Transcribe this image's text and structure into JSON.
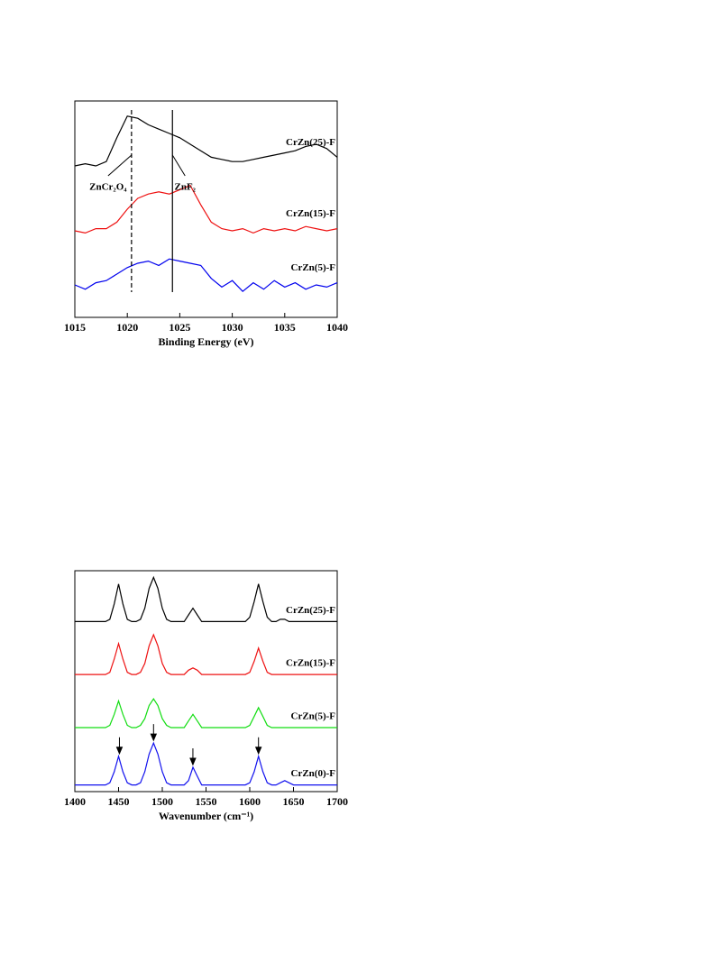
{
  "chart_data": [
    {
      "type": "line",
      "xlabel": "Binding Energy (eV)",
      "xlim": [
        1015,
        1040
      ],
      "xticks": [
        1015,
        1020,
        1025,
        1030,
        1035,
        1040
      ],
      "ylim": [
        0,
        100
      ],
      "x": [
        1015,
        1016,
        1017,
        1018,
        1019,
        1020,
        1021,
        1022,
        1023,
        1024,
        1025,
        1026,
        1027,
        1028,
        1029,
        1030,
        1031,
        1032,
        1033,
        1034,
        1035,
        1036,
        1037,
        1038,
        1039,
        1040
      ],
      "series": [
        {
          "name": "CrZn(25)-F",
          "color": "#000000",
          "values": [
            70,
            71,
            70,
            72,
            83,
            93,
            92,
            89,
            87,
            85,
            83,
            80,
            77,
            74,
            73,
            72,
            72,
            73,
            74,
            75,
            76,
            77,
            79,
            80,
            78,
            74
          ]
        },
        {
          "name": "CrZn(15)-F",
          "color": "#ee1111",
          "values": [
            40,
            39,
            41,
            41,
            44,
            50,
            55,
            57,
            58,
            57,
            59,
            61,
            52,
            44,
            41,
            40,
            41,
            39,
            41,
            40,
            41,
            40,
            42,
            41,
            40,
            41
          ]
        },
        {
          "name": "CrZn(5)-F",
          "color": "#0000ee",
          "values": [
            15,
            13,
            16,
            17,
            20,
            23,
            25,
            26,
            24,
            27,
            26,
            25,
            24,
            18,
            14,
            17,
            12,
            16,
            13,
            17,
            14,
            16,
            13,
            15,
            14,
            16
          ]
        }
      ],
      "vlines": [
        {
          "x": 1020.4,
          "dashed": true,
          "label": "ZnCr₂O₄"
        },
        {
          "x": 1024.3,
          "dashed": false,
          "label": "ZnF₂"
        }
      ]
    },
    {
      "type": "line",
      "xlabel": "Wavenumber (cm⁻¹)",
      "xlim": [
        1400,
        1700
      ],
      "xticks": [
        1400,
        1450,
        1500,
        1550,
        1600,
        1650,
        1700
      ],
      "ylim": [
        0,
        100
      ],
      "x": [
        1400,
        1405,
        1410,
        1415,
        1420,
        1425,
        1430,
        1435,
        1440,
        1445,
        1450,
        1455,
        1460,
        1465,
        1470,
        1475,
        1480,
        1485,
        1490,
        1495,
        1500,
        1505,
        1510,
        1515,
        1520,
        1525,
        1530,
        1535,
        1540,
        1545,
        1550,
        1555,
        1560,
        1565,
        1570,
        1575,
        1580,
        1585,
        1590,
        1595,
        1600,
        1605,
        1610,
        1615,
        1620,
        1625,
        1630,
        1635,
        1640,
        1645,
        1650,
        1655,
        1660,
        1665,
        1670,
        1675,
        1680,
        1685,
        1690,
        1695,
        1700
      ],
      "series": [
        {
          "name": "CrZn(25)-F",
          "color": "#000000",
          "values": [
            77,
            77,
            77,
            77,
            77,
            77,
            77,
            77,
            78,
            85,
            94,
            85,
            78,
            77,
            77,
            78,
            83,
            92,
            97,
            92,
            83,
            78,
            77,
            77,
            77,
            77,
            80,
            83,
            80,
            77,
            77,
            77,
            77,
            77,
            77,
            77,
            77,
            77,
            77,
            77,
            79,
            86,
            94,
            86,
            79,
            77,
            77,
            78,
            78,
            77,
            77,
            77,
            77,
            77,
            77,
            77,
            77,
            77,
            77,
            77,
            77
          ]
        },
        {
          "name": "CrZn(15)-F",
          "color": "#ee1111",
          "values": [
            53,
            53,
            53,
            53,
            53,
            53,
            53,
            53,
            54,
            60,
            67,
            60,
            54,
            53,
            53,
            54,
            58,
            66,
            71,
            66,
            58,
            54,
            53,
            53,
            53,
            53,
            55,
            56,
            55,
            53,
            53,
            53,
            53,
            53,
            53,
            53,
            53,
            53,
            53,
            53,
            54,
            59,
            65,
            59,
            54,
            53,
            53,
            53,
            53,
            53,
            53,
            53,
            53,
            53,
            53,
            53,
            53,
            53,
            53,
            53,
            53
          ]
        },
        {
          "name": "CrZn(5)-F",
          "color": "#11dd11",
          "values": [
            29,
            29,
            29,
            29,
            29,
            29,
            29,
            29,
            30,
            35,
            41,
            35,
            30,
            29,
            29,
            30,
            33,
            39,
            42,
            39,
            33,
            30,
            29,
            29,
            29,
            29,
            32,
            35,
            32,
            29,
            29,
            29,
            29,
            29,
            29,
            29,
            29,
            29,
            29,
            29,
            30,
            34,
            38,
            34,
            30,
            29,
            29,
            29,
            29,
            29,
            29,
            29,
            29,
            29,
            29,
            29,
            29,
            29,
            29,
            29,
            29
          ]
        },
        {
          "name": "CrZn(0)-F",
          "color": "#1111ee",
          "values": [
            3,
            3,
            3,
            3,
            3,
            3,
            3,
            3,
            4,
            9,
            16,
            9,
            4,
            3,
            3,
            4,
            9,
            17,
            22,
            17,
            9,
            4,
            3,
            3,
            3,
            3,
            5,
            11,
            7,
            3,
            3,
            3,
            3,
            3,
            3,
            3,
            3,
            3,
            3,
            3,
            4,
            9,
            16,
            9,
            4,
            3,
            3,
            4,
            5,
            4,
            3,
            3,
            3,
            3,
            3,
            3,
            3,
            3,
            3,
            3,
            3
          ],
          "arrows": [
            1451,
            1490,
            1535,
            1610
          ]
        }
      ]
    }
  ]
}
